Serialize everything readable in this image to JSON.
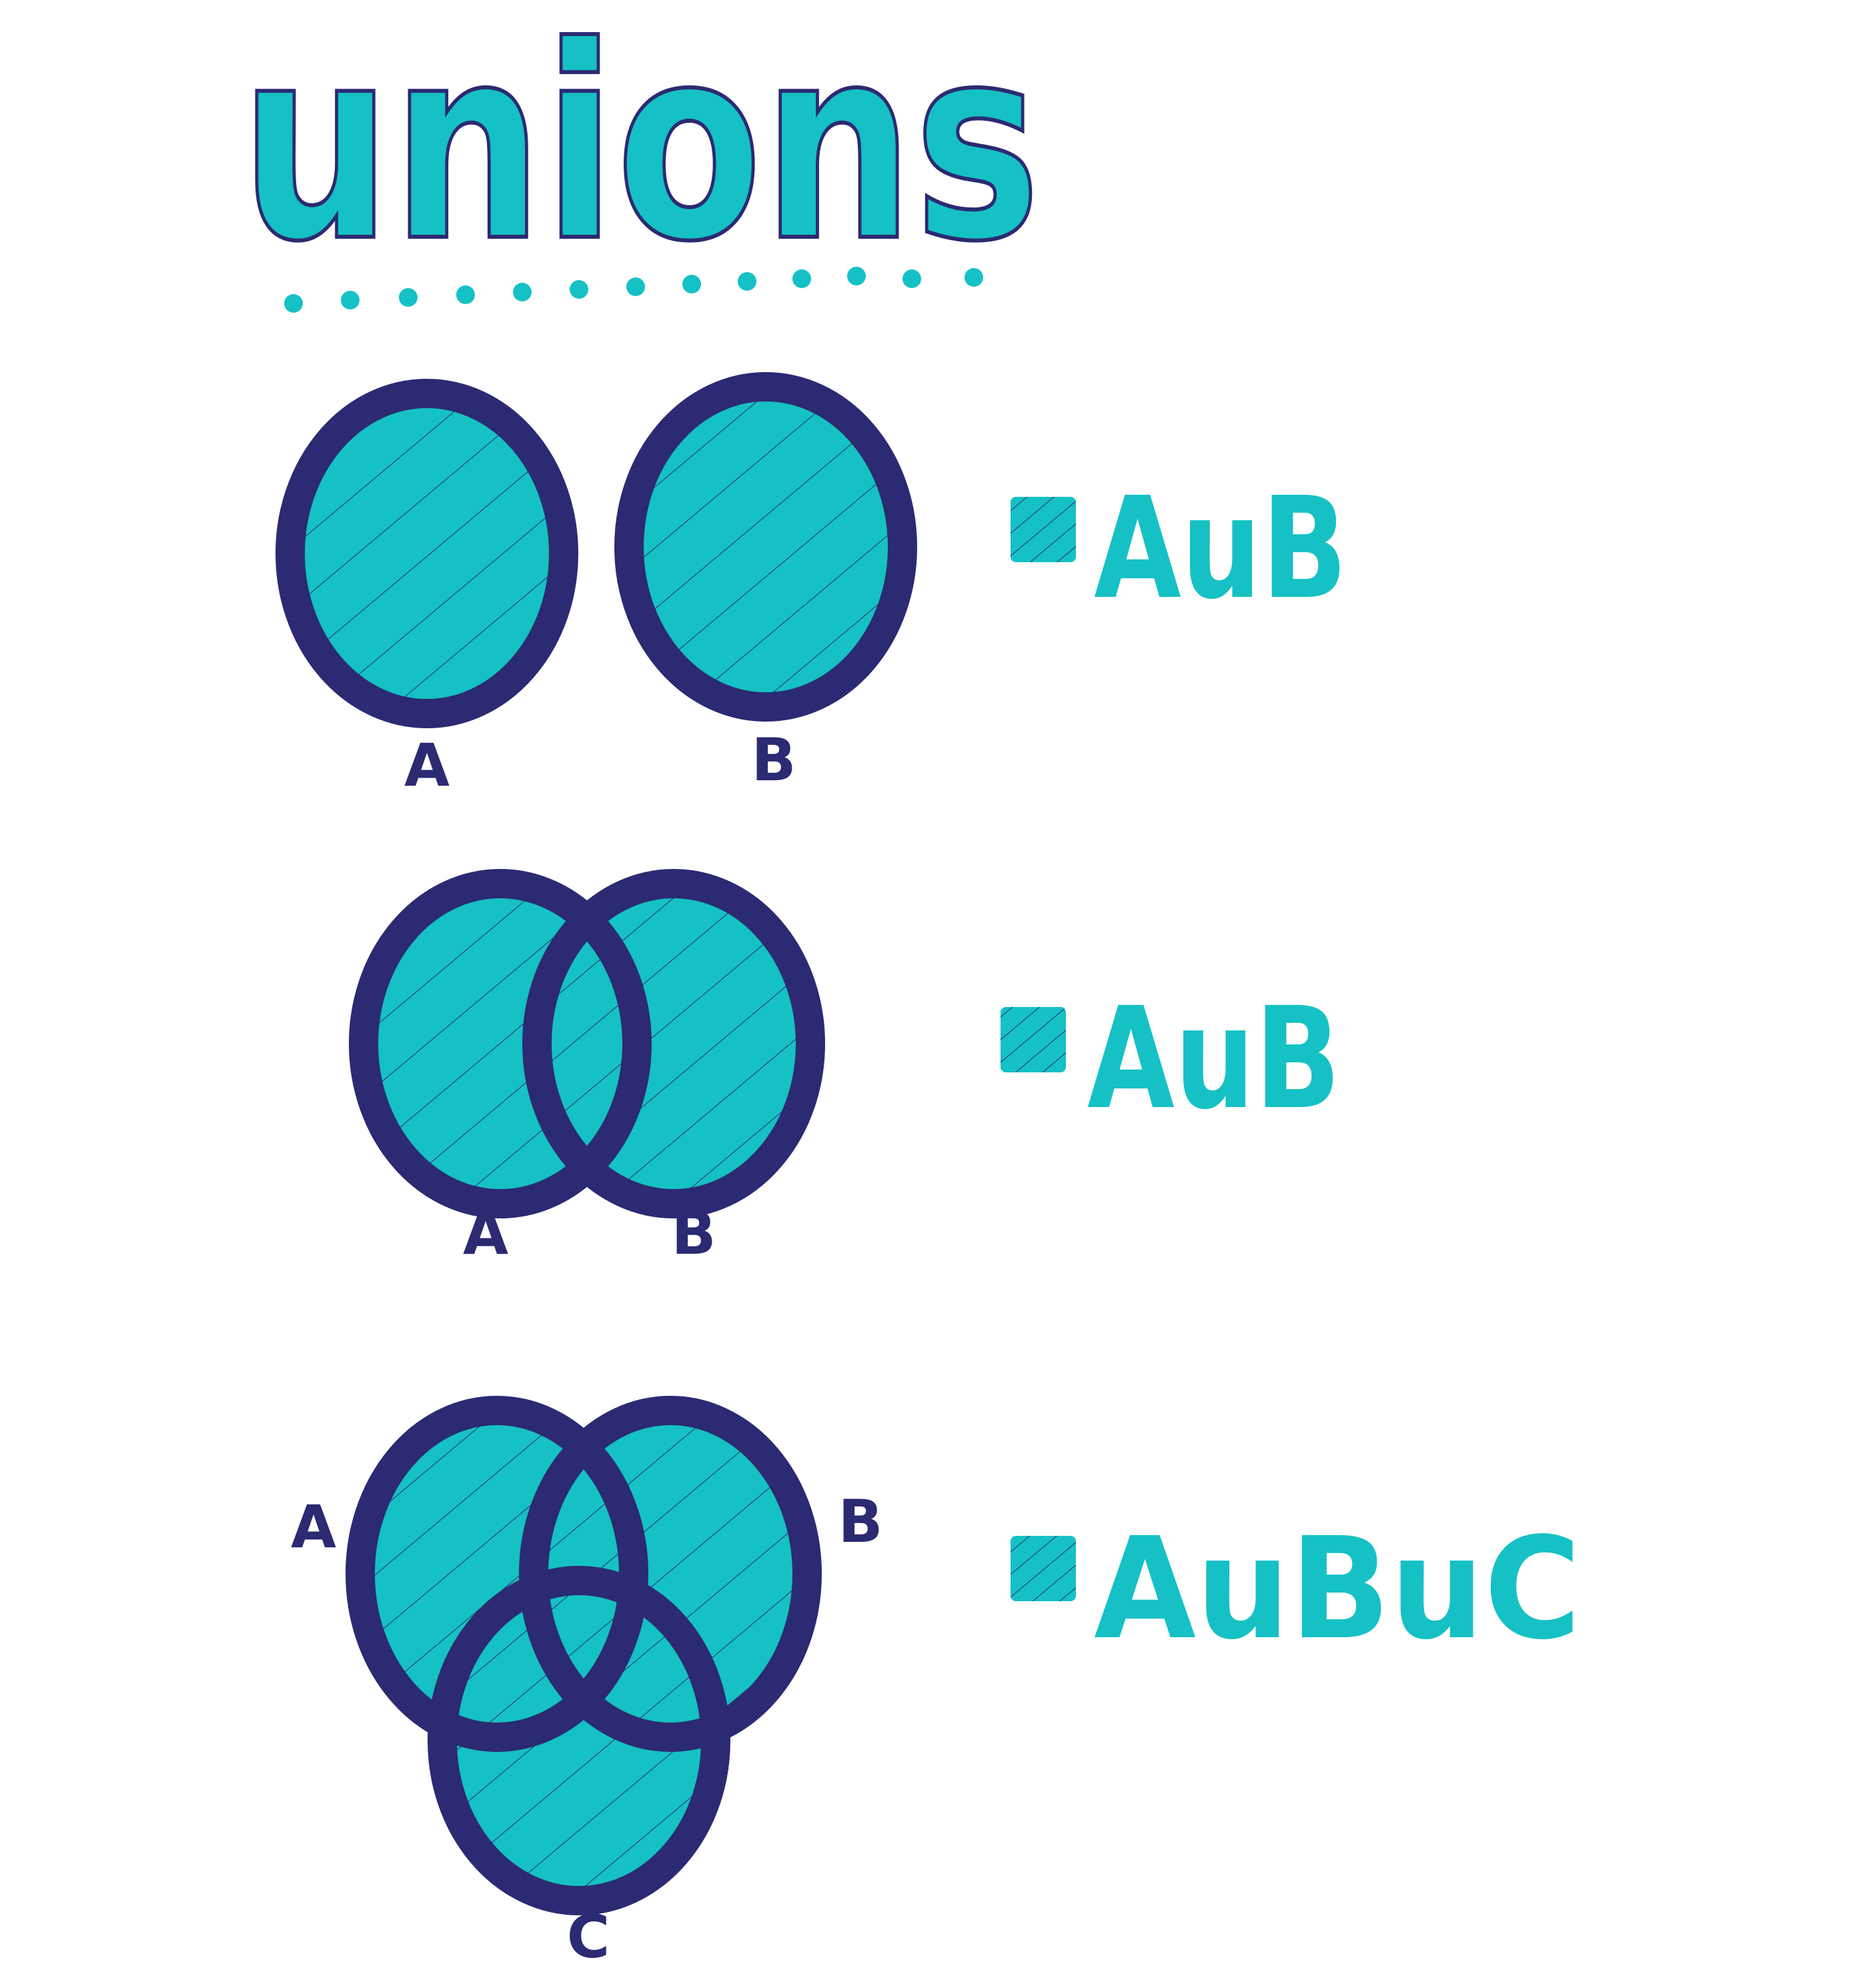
{
  "title": "unions",
  "colors": {
    "fill": "#15c1c4",
    "stroke": "#2b2a72",
    "title": "#15c1c4",
    "background": "#ffffff"
  },
  "diagrams": [
    {
      "kind": "disjoint-two-sets",
      "labels": [
        "A",
        "B"
      ],
      "legend_expression": "AuB"
    },
    {
      "kind": "overlapping-two-sets",
      "labels": [
        "A",
        "B"
      ],
      "legend_expression": "AuB"
    },
    {
      "kind": "overlapping-three-sets",
      "labels": [
        "A",
        "B",
        "C"
      ],
      "legend_expression": "AuBuC"
    }
  ]
}
